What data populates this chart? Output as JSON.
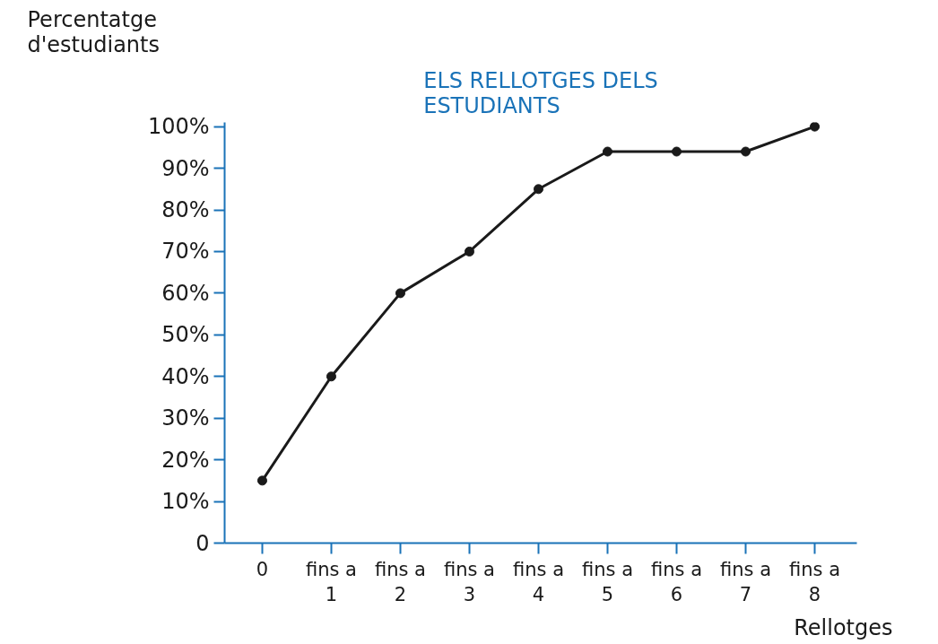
{
  "chart_data": {
    "type": "line",
    "title": "ELS RELLOTGES DELS\nESTUDIANTS",
    "xlabel": "Rellotges",
    "ylabel": "Percentatge\nd'estudiants",
    "categories": [
      "0",
      "fins a\n1",
      "fins a\n2",
      "fins a\n3",
      "fins a\n4",
      "fins a\n5",
      "fins a\n6",
      "fins a\n7",
      "fins a\n8"
    ],
    "series": [
      {
        "color": "#1a1a1a",
        "values": [
          15,
          40,
          60,
          70,
          85,
          94,
          94,
          94,
          100
        ]
      }
    ],
    "ylim": [
      0,
      101
    ],
    "yticks": [
      0,
      {
        "value": 10,
        "label": "10%"
      },
      {
        "value": 20,
        "label": "20%"
      },
      {
        "value": 30,
        "label": "30%"
      },
      {
        "value": 40,
        "label": "40%"
      },
      {
        "value": 50,
        "label": "50%"
      },
      {
        "value": 60,
        "label": "60%"
      },
      {
        "value": 70,
        "label": "70%"
      },
      {
        "value": 80,
        "label": "80%"
      },
      {
        "value": 90,
        "label": "90%"
      },
      {
        "value": 100,
        "label": "100%"
      }
    ],
    "grid": false,
    "marker": "circle",
    "line_style": "solid"
  }
}
